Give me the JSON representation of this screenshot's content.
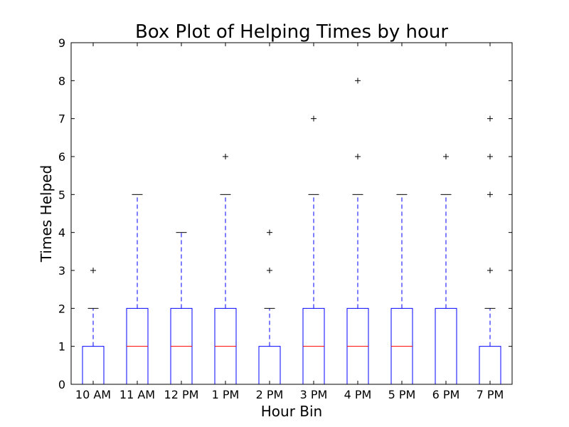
{
  "chart_data": {
    "type": "box",
    "title": "Box Plot of Helping Times by hour",
    "xlabel": "Hour Bin",
    "ylabel": "Times Helped",
    "ylim": [
      0,
      9
    ],
    "yticks": [
      "0",
      "1",
      "2",
      "3",
      "4",
      "5",
      "6",
      "7",
      "8",
      "9"
    ],
    "grid": false,
    "colors": {
      "box": "#0000ff",
      "median": "#ff0000",
      "whisker": "#0000ff",
      "cap": "#000000",
      "outlier": "#000000"
    },
    "categories": [
      "10 AM",
      "11 AM",
      "12 PM",
      "1 PM",
      "2 PM",
      "3 PM",
      "4 PM",
      "5 PM",
      "6 PM",
      "7 PM"
    ],
    "boxes": [
      {
        "q1": 0,
        "median": 0,
        "q3": 1,
        "whisker_low": 0,
        "whisker_high": 2,
        "outliers": [
          3
        ]
      },
      {
        "q1": 0,
        "median": 1,
        "q3": 2,
        "whisker_low": 0,
        "whisker_high": 5,
        "outliers": []
      },
      {
        "q1": 0,
        "median": 1,
        "q3": 2,
        "whisker_low": 0,
        "whisker_high": 4,
        "outliers": []
      },
      {
        "q1": 0,
        "median": 1,
        "q3": 2,
        "whisker_low": 0,
        "whisker_high": 5,
        "outliers": [
          6
        ]
      },
      {
        "q1": 0,
        "median": 0,
        "q3": 1,
        "whisker_low": 0,
        "whisker_high": 2,
        "outliers": [
          3,
          4
        ]
      },
      {
        "q1": 0,
        "median": 1,
        "q3": 2,
        "whisker_low": 0,
        "whisker_high": 5,
        "outliers": [
          7
        ]
      },
      {
        "q1": 0,
        "median": 1,
        "q3": 2,
        "whisker_low": 0,
        "whisker_high": 5,
        "outliers": [
          6,
          8
        ]
      },
      {
        "q1": 0,
        "median": 1,
        "q3": 2,
        "whisker_low": 0,
        "whisker_high": 5,
        "outliers": []
      },
      {
        "q1": 0,
        "median": 0,
        "q3": 2,
        "whisker_low": 0,
        "whisker_high": 5,
        "outliers": [
          6
        ]
      },
      {
        "q1": 0,
        "median": 0,
        "q3": 1,
        "whisker_low": 0,
        "whisker_high": 2,
        "outliers": [
          3,
          5,
          6,
          7
        ]
      }
    ]
  }
}
